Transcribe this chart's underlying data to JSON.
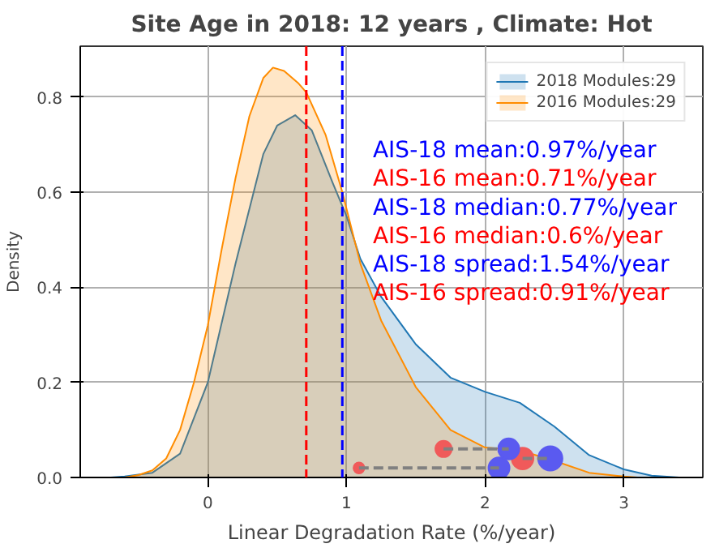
{
  "chart_data": {
    "type": "area",
    "title": "Site Age in 2018: 12 years , Climate: Hot",
    "xlabel": "Linear Degradation Rate (%/year)",
    "ylabel": "Density",
    "xlim": [
      -0.92,
      3.57
    ],
    "ylim": [
      0,
      0.907
    ],
    "xticks": [
      0,
      1,
      2,
      3
    ],
    "yticks": [
      {
        "value": 0,
        "label": "0.0"
      },
      {
        "value": 0.2,
        "label": "0.2"
      },
      {
        "value": 0.4,
        "label": "0.4"
      },
      {
        "value": 0.6,
        "label": "0.6"
      },
      {
        "value": 0.8,
        "label": "0.8"
      }
    ],
    "grid": true,
    "legend": "top right",
    "series": [
      {
        "name": "2018 Modules:29",
        "color": "#1f77b4",
        "x": [
          -0.7,
          -0.6,
          -0.4,
          -0.2,
          0,
          0.2,
          0.4,
          0.5,
          0.63,
          0.75,
          0.9,
          1.0,
          1.1,
          1.25,
          1.5,
          1.75,
          2.0,
          2.25,
          2.5,
          2.75,
          3.0,
          3.2,
          3.4
        ],
        "values": [
          0,
          0.002,
          0.01,
          0.05,
          0.2,
          0.45,
          0.68,
          0.74,
          0.762,
          0.73,
          0.62,
          0.55,
          0.46,
          0.38,
          0.28,
          0.21,
          0.18,
          0.157,
          0.107,
          0.047,
          0.017,
          0.004,
          0
        ]
      },
      {
        "name": "2016 Modules:29",
        "color": "#ff8c00",
        "x": [
          -0.6,
          -0.5,
          -0.4,
          -0.3,
          -0.2,
          -0.1,
          0,
          0.1,
          0.2,
          0.3,
          0.4,
          0.47,
          0.55,
          0.65,
          0.71,
          0.85,
          0.97,
          1.1,
          1.25,
          1.5,
          1.75,
          2.0,
          2.25,
          2.5,
          2.75,
          3.0,
          3.1
        ],
        "values": [
          0,
          0.005,
          0.015,
          0.04,
          0.1,
          0.2,
          0.32,
          0.48,
          0.63,
          0.76,
          0.84,
          0.862,
          0.855,
          0.83,
          0.81,
          0.72,
          0.6,
          0.45,
          0.33,
          0.19,
          0.1,
          0.063,
          0.057,
          0.035,
          0.01,
          0.002,
          0
        ]
      },
      {
        "type": "bubble",
        "color": "#f05a5a",
        "x": [
          1.09,
          1.7,
          2.27
        ],
        "values": [
          0.02,
          0.06,
          0.04
        ],
        "sizes": [
          0.2,
          0.45,
          0.8
        ]
      },
      {
        "type": "bubble",
        "color": "#5a5af0",
        "x": [
          2.1,
          2.17,
          2.47
        ],
        "values": [
          0.02,
          0.06,
          0.04
        ],
        "sizes": [
          0.75,
          0.75,
          1
        ]
      },
      {
        "type": "line",
        "color": "#808080",
        "line_style": "dashed",
        "x": [
          1.09,
          2.1
        ],
        "values": [
          0.02,
          0.02
        ]
      },
      {
        "type": "line",
        "color": "#808080",
        "line_style": "dashed",
        "x": [
          1.7,
          2.17
        ],
        "values": [
          0.06,
          0.06
        ]
      },
      {
        "type": "line",
        "color": "#808080",
        "line_style": "dashed",
        "x": [
          2.27,
          2.47
        ],
        "values": [
          0.04,
          0.04
        ]
      }
    ],
    "ref_lines": [
      {
        "axis": "x",
        "value": 0.71,
        "color": "#ff0000",
        "line_style": "dashed"
      },
      {
        "axis": "x",
        "value": 0.97,
        "color": "#0000ff",
        "line_style": "dashed"
      }
    ],
    "annotations": [
      "AIS-18 mean:0.97%/year",
      "AIS-16 mean:0.71%/year",
      "AIS-18 median:0.77%/year",
      "AIS-16 median:0.6%/year",
      "AIS-18 spread:1.54%/year",
      "AIS-16 spread:0.91%/year"
    ]
  }
}
